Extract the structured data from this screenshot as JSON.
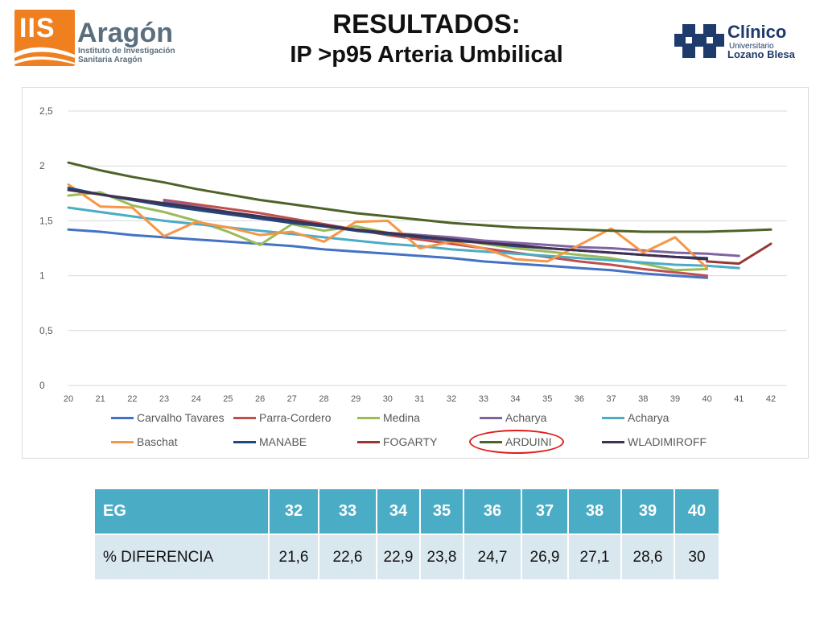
{
  "header": {
    "title": "RESULTADOS:",
    "subtitle": "IP >p95 Arteria Umbilical"
  },
  "logo_left": {
    "mark": "IIS",
    "brand": "Aragón",
    "line1": "Instituto de Investigación",
    "line2": "Sanitaria Aragón"
  },
  "logo_right": {
    "name": "Clínico",
    "line1": "Universitario",
    "line2": "Lozano Blesa"
  },
  "chart_data": {
    "type": "line",
    "x": [
      20,
      21,
      22,
      23,
      24,
      25,
      26,
      27,
      28,
      29,
      30,
      31,
      32,
      33,
      34,
      35,
      36,
      37,
      38,
      39,
      40,
      41,
      42
    ],
    "ylim": [
      0,
      2.5
    ],
    "yticks": [
      "0",
      "0,5",
      "1",
      "1,5",
      "2",
      "2,5"
    ],
    "ytick_values": [
      0,
      0.5,
      1,
      1.5,
      2,
      2.5
    ],
    "grid": true,
    "legend_position": "bottom",
    "series": [
      {
        "name": "Carvalho Tavares",
        "color": "#4472c4",
        "values": [
          1.42,
          1.4,
          1.37,
          1.35,
          1.33,
          1.31,
          1.29,
          1.27,
          1.24,
          1.22,
          1.2,
          1.18,
          1.16,
          1.13,
          1.11,
          1.09,
          1.07,
          1.05,
          1.02,
          1.0,
          0.98,
          null,
          null
        ]
      },
      {
        "name": "Parra-Cordero",
        "color": "#c0504d",
        "values": [
          null,
          null,
          null,
          1.69,
          1.65,
          1.61,
          1.57,
          1.52,
          1.47,
          1.42,
          1.37,
          1.33,
          1.29,
          1.25,
          1.21,
          1.17,
          1.13,
          1.1,
          1.06,
          1.03,
          1.0,
          null,
          null
        ]
      },
      {
        "name": "Medina",
        "color": "#9bbb59",
        "values": [
          1.73,
          1.76,
          1.64,
          1.58,
          1.5,
          1.4,
          1.28,
          1.47,
          1.41,
          1.45,
          1.39,
          1.37,
          1.34,
          1.29,
          1.25,
          1.22,
          1.19,
          1.16,
          1.11,
          1.05,
          1.06,
          null,
          null
        ]
      },
      {
        "name": "Acharya",
        "color": "#8064a2",
        "values": [
          null,
          null,
          null,
          1.68,
          1.63,
          1.58,
          1.54,
          1.49,
          1.45,
          1.42,
          1.39,
          1.37,
          1.35,
          1.32,
          1.3,
          1.28,
          1.26,
          1.25,
          1.23,
          1.21,
          1.2,
          1.18,
          null
        ]
      },
      {
        "name": "Acharya",
        "color": "#4bacc6",
        "values": [
          1.62,
          1.58,
          1.54,
          1.5,
          1.47,
          1.44,
          1.41,
          1.38,
          1.35,
          1.32,
          1.29,
          1.27,
          1.24,
          1.22,
          1.2,
          1.18,
          1.16,
          1.14,
          1.12,
          1.1,
          1.09,
          1.07,
          null
        ]
      },
      {
        "name": "Baschat",
        "color": "#f79646",
        "values": [
          1.83,
          1.63,
          1.62,
          1.36,
          1.49,
          1.44,
          1.37,
          1.4,
          1.31,
          1.49,
          1.5,
          1.25,
          1.31,
          1.25,
          1.15,
          1.13,
          1.28,
          1.43,
          1.21,
          1.35,
          1.07,
          null,
          null
        ]
      },
      {
        "name": "MANABE",
        "color": "#1f497d",
        "values": [
          1.8,
          1.74,
          1.69,
          1.64,
          1.6,
          1.56,
          1.52,
          1.48,
          1.45,
          1.41,
          1.38,
          1.35,
          1.32,
          1.3,
          1.27,
          1.25,
          1.23,
          1.21,
          1.19,
          1.17,
          1.16,
          null,
          null
        ]
      },
      {
        "name": "FOGARTY",
        "color": "#953735",
        "values": [
          null,
          null,
          null,
          null,
          null,
          null,
          null,
          null,
          null,
          null,
          null,
          null,
          null,
          null,
          null,
          null,
          null,
          null,
          null,
          null,
          1.13,
          1.11,
          1.29
        ]
      },
      {
        "name": "ARDUINI",
        "color": "#4f6228",
        "values": [
          2.03,
          1.96,
          1.9,
          1.85,
          1.79,
          1.74,
          1.69,
          1.65,
          1.61,
          1.57,
          1.54,
          1.51,
          1.48,
          1.46,
          1.44,
          1.43,
          1.42,
          1.41,
          1.4,
          1.4,
          1.4,
          1.41,
          1.42
        ]
      },
      {
        "name": "WLADIMIROFF",
        "color": "#403152",
        "values": [
          1.78,
          1.74,
          1.7,
          1.66,
          1.62,
          1.58,
          1.54,
          1.5,
          1.46,
          1.42,
          1.39,
          1.36,
          1.33,
          1.3,
          1.28,
          1.25,
          1.23,
          1.21,
          1.19,
          1.17,
          1.15,
          null,
          null
        ]
      }
    ]
  },
  "table": {
    "header": [
      "EG",
      "32",
      "33",
      "34",
      "35",
      "36",
      "37",
      "38",
      "39",
      "40"
    ],
    "row": [
      "% DIFERENCIA",
      "21,6",
      "22,6",
      "22,9",
      "23,8",
      "24,7",
      "26,9",
      "27,1",
      "28,6",
      "30"
    ]
  }
}
